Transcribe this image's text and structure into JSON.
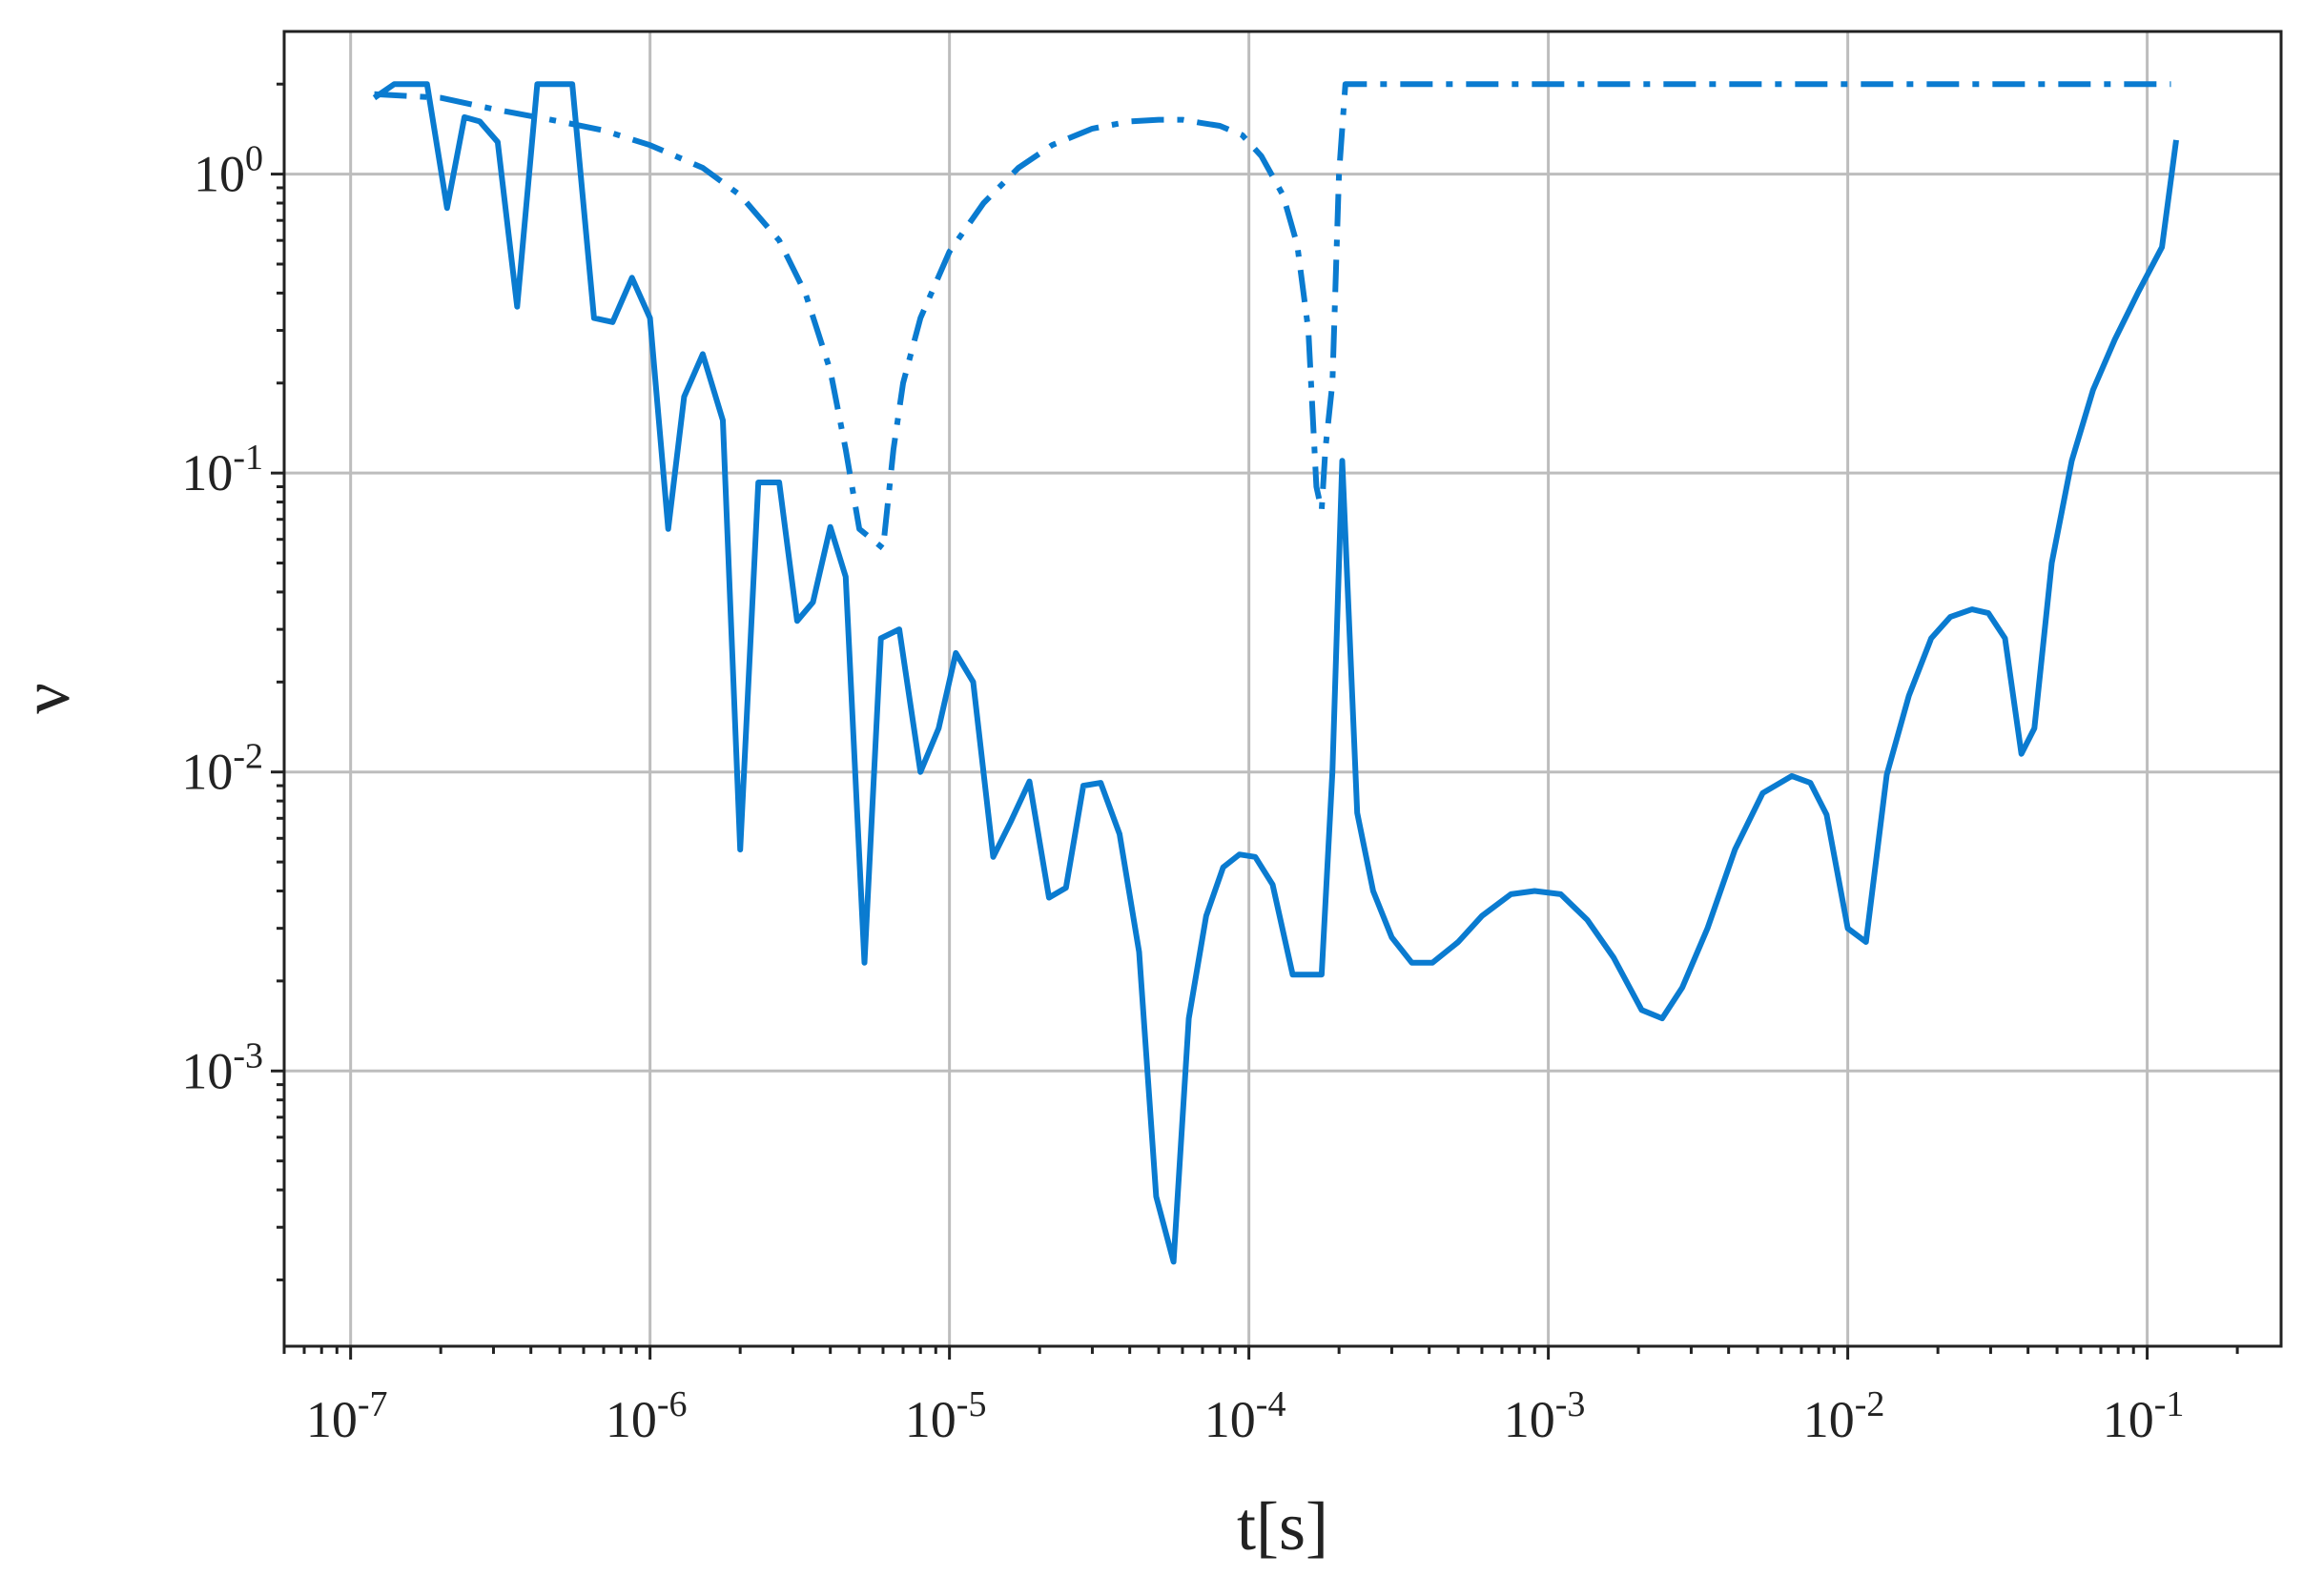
{
  "chart_data": {
    "type": "line",
    "title": "",
    "xlabel": "t[s]",
    "ylabel": "ν",
    "xscale": "log",
    "yscale": "log",
    "xlim": [
      6e-08,
      0.28
    ],
    "ylim": [
      0.00012,
      3.0
    ],
    "grid": true,
    "legend": "none",
    "x_ticks": [
      {
        "value": 1e-07,
        "base": "10",
        "exp": "-7"
      },
      {
        "value": 1e-06,
        "base": "10",
        "exp": "-6"
      },
      {
        "value": 1e-05,
        "base": "10",
        "exp": "-5"
      },
      {
        "value": 0.0001,
        "base": "10",
        "exp": "-4"
      },
      {
        "value": 0.001,
        "base": "10",
        "exp": "-3"
      },
      {
        "value": 0.01,
        "base": "10",
        "exp": "-2"
      },
      {
        "value": 0.1,
        "base": "10",
        "exp": "-1"
      }
    ],
    "y_ticks": [
      {
        "value": 1,
        "base": "10",
        "exp": "0"
      },
      {
        "value": 0.1,
        "base": "10",
        "exp": "-1"
      },
      {
        "value": 0.01,
        "base": "10",
        "exp": "-2"
      },
      {
        "value": 0.001,
        "base": "10",
        "exp": "-3"
      }
    ],
    "series": [
      {
        "style": "solid",
        "color": "#0a7bd0",
        "x": [
          1.2e-07,
          1.4e-07,
          1.8e-07,
          2.1e-07,
          2.4e-07,
          2.7e-07,
          3.1e-07,
          3.6e-07,
          4.2e-07,
          5.5e-07,
          6.5e-07,
          7.5e-07,
          8.7e-07,
          1e-06,
          1.15e-06,
          1.3e-06,
          1.5e-06,
          1.75e-06,
          2e-06,
          2.3e-06,
          2.7e-06,
          3.1e-06,
          3.5e-06,
          4e-06,
          4.5e-06,
          5.2e-06,
          5.9e-06,
          6.8e-06,
          8e-06,
          9.2e-06,
          1.05e-05,
          1.2e-05,
          1.4e-05,
          1.6e-05,
          1.85e-05,
          2.15e-05,
          2.45e-05,
          2.8e-05,
          3.2e-05,
          3.7e-05,
          4.3e-05,
          4.9e-05,
          5.6e-05,
          6.3e-05,
          7.2e-05,
          8.2e-05,
          9.3e-05,
          0.000105,
          0.00012,
          0.00014,
          0.000155,
          0.000175,
          0.00019,
          0.000205,
          0.00023,
          0.00026,
          0.0003,
          0.00035,
          0.00041,
          0.0005,
          0.0006,
          0.00075,
          0.0009,
          0.0011,
          0.00135,
          0.00165,
          0.00205,
          0.0024,
          0.0028,
          0.0034,
          0.0042,
          0.0052,
          0.0065,
          0.0075,
          0.0085,
          0.01,
          0.0115,
          0.0135,
          0.016,
          0.019,
          0.022,
          0.026,
          0.0295,
          0.0335,
          0.038,
          0.042,
          0.048,
          0.056,
          0.066,
          0.078,
          0.093,
          0.112,
          0.125
        ],
        "y": [
          1.8,
          2.0,
          2.0,
          0.77,
          1.55,
          1.5,
          1.28,
          0.36,
          2.0,
          2.0,
          0.33,
          0.32,
          0.45,
          0.33,
          0.065,
          0.18,
          0.25,
          0.15,
          0.0055,
          0.093,
          0.093,
          0.032,
          0.037,
          0.066,
          0.045,
          0.0023,
          0.028,
          0.03,
          0.01,
          0.014,
          0.025,
          0.02,
          0.0052,
          0.0068,
          0.0093,
          0.0038,
          0.0041,
          0.009,
          0.0092,
          0.0062,
          0.0025,
          0.00038,
          0.00023,
          0.0015,
          0.0033,
          0.0048,
          0.0053,
          0.0052,
          0.0042,
          0.0021,
          0.0021,
          0.0021,
          0.01,
          0.11,
          0.0073,
          0.004,
          0.0028,
          0.0023,
          0.0023,
          0.0027,
          0.0033,
          0.0039,
          0.004,
          0.0039,
          0.0032,
          0.0024,
          0.0016,
          0.0015,
          0.0019,
          0.003,
          0.0055,
          0.0085,
          0.0097,
          0.0092,
          0.0072,
          0.003,
          0.0027,
          0.0098,
          0.018,
          0.028,
          0.033,
          0.035,
          0.034,
          0.028,
          0.0115,
          0.014,
          0.05,
          0.11,
          0.19,
          0.28,
          0.4,
          0.57,
          1.3
        ]
      },
      {
        "style": "dashdot",
        "color": "#0a7bd0",
        "x": [
          1.2e-07,
          2e-07,
          3e-07,
          5e-07,
          7e-07,
          1e-06,
          1.5e-06,
          2e-06,
          2.7e-06,
          3.3e-06,
          4e-06,
          4.5e-06,
          5e-06,
          6e-06,
          6.5e-06,
          7e-06,
          8e-06,
          1e-05,
          1.3e-05,
          1.7e-05,
          2.2e-05,
          3e-05,
          4e-05,
          5e-05,
          6e-05,
          7e-05,
          8e-05,
          9.5e-05,
          0.00011,
          0.00013,
          0.000145,
          0.000158,
          0.000168,
          0.000175,
          0.00018,
          0.00019,
          0.0002,
          0.00021,
          0.001,
          0.01,
          0.12
        ],
        "y": [
          1.85,
          1.8,
          1.65,
          1.5,
          1.4,
          1.25,
          1.05,
          0.85,
          0.6,
          0.4,
          0.22,
          0.12,
          0.065,
          0.056,
          0.12,
          0.2,
          0.33,
          0.55,
          0.8,
          1.05,
          1.25,
          1.42,
          1.5,
          1.52,
          1.52,
          1.48,
          1.45,
          1.35,
          1.15,
          0.85,
          0.58,
          0.3,
          0.09,
          0.075,
          0.12,
          0.2,
          1.0,
          2.0,
          2.0,
          2.0,
          2.0
        ]
      }
    ]
  }
}
